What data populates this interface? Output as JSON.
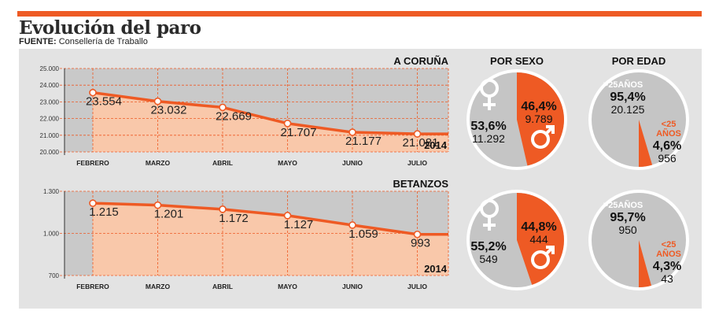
{
  "title": "Evolución del paro",
  "source_label": "FUENTE:",
  "source_text": "Consellería de Traballo",
  "colors": {
    "accent": "#ee5a24",
    "fill": "#f9c8aa",
    "plot_bg": "#c9c9c9",
    "panel_bg": "#e3e3e3",
    "pie_gray": "#c5c5c5"
  },
  "icons": {
    "female": "female-symbol-icon",
    "male": "male-symbol-icon"
  },
  "chart_data": [
    {
      "type": "area",
      "title": "A CORUÑA",
      "year": "2014",
      "categories": [
        "FEBRERO",
        "MARZO",
        "ABRIL",
        "MAYO",
        "JUNIO",
        "JULIO"
      ],
      "values": [
        23554,
        23032,
        22669,
        21707,
        21177,
        21081
      ],
      "value_labels": [
        "23.554",
        "23.032",
        "22.669",
        "21.707",
        "21.177",
        "21.081"
      ],
      "yticks": [
        20000,
        21000,
        22000,
        23000,
        24000,
        25000
      ],
      "ytick_labels": [
        "20.000",
        "21.000",
        "22.000",
        "23.000",
        "24.000",
        "25.000"
      ],
      "ylim": [
        20000,
        25000
      ]
    },
    {
      "type": "area",
      "title": "BETANZOS",
      "year": "2014",
      "categories": [
        "FEBRERO",
        "MARZO",
        "ABRIL",
        "MAYO",
        "JUNIO",
        "JULIO"
      ],
      "values": [
        1215,
        1201,
        1172,
        1127,
        1059,
        993
      ],
      "value_labels": [
        "1.215",
        "1.201",
        "1.172",
        "1.127",
        "1.059",
        "993"
      ],
      "yticks": [
        700,
        1000,
        1300
      ],
      "ytick_labels": [
        "700",
        "1.000",
        "1.300"
      ],
      "ylim": [
        700,
        1300
      ]
    },
    {
      "type": "pie",
      "title": "POR SEXO",
      "region": "A CORUÑA",
      "slices": [
        {
          "pct_label": "53,6%",
          "count": "11.292",
          "value": 53.6
        },
        {
          "pct_label": "46,4%",
          "count": "9.789",
          "value": 46.4
        }
      ]
    },
    {
      "type": "pie",
      "title": "POR EDAD",
      "region": "A CORUÑA",
      "slices": [
        {
          "label": ">25AÑOS",
          "pct_label": "95,4%",
          "count": "20.125",
          "value": 95.4
        },
        {
          "label_line1": "<25",
          "label_line2": "AÑOS",
          "pct_label": "4,6%",
          "count": "956",
          "value": 4.6
        }
      ]
    },
    {
      "type": "pie",
      "region": "BETANZOS",
      "slices": [
        {
          "pct_label": "55,2%",
          "count": "549",
          "value": 55.2
        },
        {
          "pct_label": "44,8%",
          "count": "444",
          "value": 44.8
        }
      ]
    },
    {
      "type": "pie",
      "region": "BETANZOS",
      "slices": [
        {
          "label": ">25AÑOS",
          "pct_label": "95,7%",
          "count": "950",
          "value": 95.7
        },
        {
          "label_line1": "<25",
          "label_line2": "AÑOS",
          "pct_label": "4,3%",
          "count": "43",
          "value": 4.3
        }
      ]
    }
  ]
}
